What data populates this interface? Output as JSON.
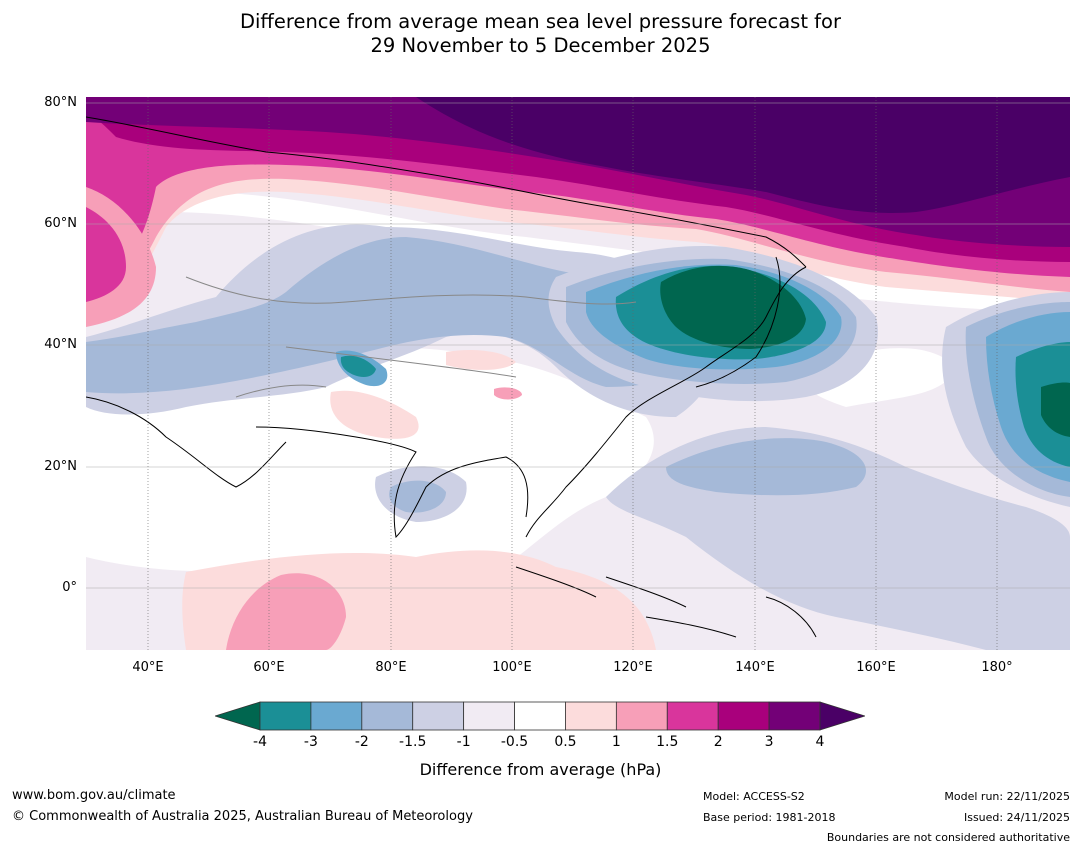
{
  "title": {
    "line1": "Difference from average mean sea level pressure forecast for",
    "line2": "29 November to 5 December 2025"
  },
  "map": {
    "lat_labels": [
      "80°N",
      "60°N",
      "40°N",
      "20°N",
      "0°"
    ],
    "lon_labels": [
      "40°E",
      "60°E",
      "80°E",
      "100°E",
      "120°E",
      "140°E",
      "160°E",
      "180°"
    ],
    "lon_range": [
      30,
      192
    ],
    "lat_range": [
      -10,
      81
    ]
  },
  "colorbar": {
    "tick_labels": [
      "-4",
      "-3",
      "-2",
      "-1.5",
      "-1",
      "-0.5",
      "0.5",
      "1",
      "1.5",
      "2",
      "3",
      "4"
    ],
    "colors": [
      "#00664f",
      "#1b8f96",
      "#6aa9d1",
      "#a5b9d8",
      "#cdd0e4",
      "#f1ebf3",
      "#ffffff",
      "#fcdcdc",
      "#f79fb8",
      "#d9359c",
      "#a9007c",
      "#730077",
      "#4a0066"
    ],
    "title": "Difference from average (hPa)"
  },
  "footer": {
    "website": "www.bom.gov.au/climate",
    "copyright": "© Commonwealth of Australia 2025, Australian Bureau of Meteorology",
    "model": "Model: ACCESS-S2",
    "base_period": "Base period: 1981-2018",
    "model_run": "Model run: 22/11/2025",
    "issued": "Issued: 24/11/2025",
    "disclaimer": "Boundaries are not considered authoritative"
  }
}
